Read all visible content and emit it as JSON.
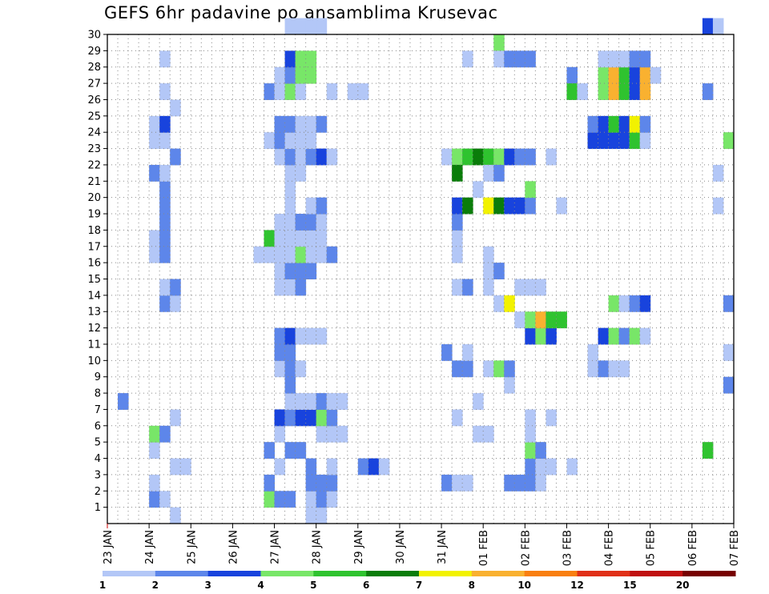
{
  "chart_data": {
    "type": "heatmap",
    "title": "GEFS 6hr padavine po ansamblima Krusevac",
    "xlabel": "",
    "ylabel": "",
    "x_ticks": [
      "23 JAN",
      "24 JAN",
      "25 JAN",
      "26 JAN",
      "27 JAN",
      "28 JAN",
      "29 JAN",
      "30 JAN",
      "31 JAN",
      "01 FEB",
      "02 FEB",
      "03 FEB",
      "04 FEB",
      "05 FEB",
      "06 FEB",
      "07 FEB"
    ],
    "y_ticks": [
      "1",
      "2",
      "3",
      "4",
      "5",
      "6",
      "7",
      "8",
      "9",
      "10",
      "11",
      "12",
      "13",
      "14",
      "15",
      "16",
      "17",
      "18",
      "19",
      "20",
      "21",
      "22",
      "23",
      "24",
      "25",
      "26",
      "27",
      "28",
      "29",
      "30"
    ],
    "xlim_steps": [
      0,
      60
    ],
    "ylim": [
      0,
      30
    ],
    "grid": true,
    "legend": {
      "placement": "bottom",
      "thresholds": [
        "1",
        "2",
        "3",
        "4",
        "5",
        "6",
        "7",
        "8",
        "10",
        "12",
        "15",
        "20"
      ],
      "colors": [
        "#b3c7f7",
        "#5d86ea",
        "#1843dd",
        "#78e668",
        "#2fc32f",
        "#0a7d0a",
        "#f2f200",
        "#f9b130",
        "#f97f10",
        "#e03018",
        "#c01010",
        "#770000"
      ]
    },
    "cells_format": "[time_step_6h_from_23JAN00, member, color_class_1_to_12]",
    "cells": [
      [
        1,
        7,
        2
      ],
      [
        4,
        1,
        2
      ],
      [
        4,
        2,
        1
      ],
      [
        4,
        4,
        1
      ],
      [
        4,
        5,
        4
      ],
      [
        4,
        16,
        1
      ],
      [
        4,
        17,
        1
      ],
      [
        4,
        21,
        2
      ],
      [
        4,
        23,
        1
      ],
      [
        4,
        24,
        1
      ],
      [
        5,
        1,
        1
      ],
      [
        5,
        5,
        2
      ],
      [
        5,
        13,
        2
      ],
      [
        5,
        14,
        1
      ],
      [
        5,
        16,
        2
      ],
      [
        5,
        17,
        2
      ],
      [
        5,
        18,
        2
      ],
      [
        5,
        19,
        2
      ],
      [
        5,
        20,
        2
      ],
      [
        5,
        21,
        1
      ],
      [
        5,
        23,
        1
      ],
      [
        5,
        24,
        3
      ],
      [
        5,
        26,
        1
      ],
      [
        5,
        28,
        1
      ],
      [
        6,
        0,
        1
      ],
      [
        6,
        3,
        1
      ],
      [
        6,
        6,
        1
      ],
      [
        6,
        13,
        1
      ],
      [
        6,
        14,
        2
      ],
      [
        6,
        22,
        2
      ],
      [
        6,
        25,
        1
      ],
      [
        7,
        3,
        1
      ],
      [
        14,
        16,
        1
      ],
      [
        15,
        1,
        4
      ],
      [
        15,
        2,
        2
      ],
      [
        15,
        4,
        2
      ],
      [
        15,
        16,
        1
      ],
      [
        15,
        17,
        5
      ],
      [
        15,
        23,
        1
      ],
      [
        15,
        26,
        2
      ],
      [
        16,
        1,
        2
      ],
      [
        16,
        3,
        1
      ],
      [
        16,
        5,
        1
      ],
      [
        16,
        6,
        3
      ],
      [
        16,
        9,
        1
      ],
      [
        16,
        10,
        2
      ],
      [
        16,
        11,
        2
      ],
      [
        16,
        14,
        1
      ],
      [
        16,
        15,
        1
      ],
      [
        16,
        16,
        1
      ],
      [
        16,
        17,
        1
      ],
      [
        16,
        18,
        1
      ],
      [
        16,
        22,
        1
      ],
      [
        16,
        23,
        2
      ],
      [
        16,
        24,
        2
      ],
      [
        16,
        26,
        1
      ],
      [
        16,
        27,
        1
      ],
      [
        17,
        1,
        2
      ],
      [
        17,
        4,
        2
      ],
      [
        17,
        6,
        2
      ],
      [
        17,
        7,
        1
      ],
      [
        17,
        8,
        2
      ],
      [
        17,
        9,
        2
      ],
      [
        17,
        10,
        2
      ],
      [
        17,
        11,
        3
      ],
      [
        17,
        14,
        1
      ],
      [
        17,
        15,
        2
      ],
      [
        17,
        16,
        1
      ],
      [
        17,
        17,
        1
      ],
      [
        17,
        18,
        1
      ],
      [
        17,
        19,
        1
      ],
      [
        17,
        20,
        1
      ],
      [
        17,
        21,
        1
      ],
      [
        17,
        22,
        2
      ],
      [
        17,
        23,
        1
      ],
      [
        17,
        24,
        2
      ],
      [
        17,
        26,
        4
      ],
      [
        17,
        27,
        2
      ],
      [
        17,
        28,
        3
      ],
      [
        17,
        30,
        1
      ],
      [
        18,
        4,
        2
      ],
      [
        18,
        6,
        3
      ],
      [
        18,
        7,
        1
      ],
      [
        18,
        9,
        1
      ],
      [
        18,
        11,
        1
      ],
      [
        18,
        14,
        2
      ],
      [
        18,
        15,
        2
      ],
      [
        18,
        16,
        4
      ],
      [
        18,
        17,
        1
      ],
      [
        18,
        18,
        2
      ],
      [
        18,
        21,
        1
      ],
      [
        18,
        22,
        1
      ],
      [
        18,
        23,
        1
      ],
      [
        18,
        24,
        1
      ],
      [
        18,
        26,
        1
      ],
      [
        18,
        27,
        4
      ],
      [
        18,
        28,
        4
      ],
      [
        18,
        30,
        1
      ],
      [
        19,
        0,
        1
      ],
      [
        19,
        1,
        1
      ],
      [
        19,
        2,
        2
      ],
      [
        19,
        3,
        2
      ],
      [
        19,
        6,
        3
      ],
      [
        19,
        7,
        1
      ],
      [
        19,
        11,
        1
      ],
      [
        19,
        15,
        2
      ],
      [
        19,
        16,
        1
      ],
      [
        19,
        17,
        1
      ],
      [
        19,
        18,
        2
      ],
      [
        19,
        19,
        1
      ],
      [
        19,
        22,
        2
      ],
      [
        19,
        23,
        1
      ],
      [
        19,
        24,
        1
      ],
      [
        19,
        27,
        4
      ],
      [
        19,
        28,
        4
      ],
      [
        19,
        30,
        1
      ],
      [
        20,
        0,
        1
      ],
      [
        20,
        1,
        2
      ],
      [
        20,
        2,
        2
      ],
      [
        20,
        5,
        1
      ],
      [
        20,
        6,
        4
      ],
      [
        20,
        7,
        2
      ],
      [
        20,
        11,
        1
      ],
      [
        20,
        16,
        1
      ],
      [
        20,
        17,
        1
      ],
      [
        20,
        18,
        1
      ],
      [
        20,
        19,
        2
      ],
      [
        20,
        22,
        3
      ],
      [
        20,
        24,
        2
      ],
      [
        20,
        30,
        1
      ],
      [
        21,
        1,
        1
      ],
      [
        21,
        2,
        2
      ],
      [
        21,
        3,
        1
      ],
      [
        21,
        5,
        1
      ],
      [
        21,
        6,
        2
      ],
      [
        21,
        7,
        1
      ],
      [
        21,
        16,
        2
      ],
      [
        21,
        22,
        1
      ],
      [
        21,
        26,
        1
      ],
      [
        22,
        5,
        1
      ],
      [
        22,
        7,
        1
      ],
      [
        23,
        26,
        1
      ],
      [
        24,
        3,
        2
      ],
      [
        24,
        26,
        1
      ],
      [
        25,
        3,
        3
      ],
      [
        26,
        3,
        1
      ],
      [
        32,
        2,
        2
      ],
      [
        32,
        10,
        2
      ],
      [
        32,
        22,
        1
      ],
      [
        33,
        2,
        1
      ],
      [
        33,
        6,
        1
      ],
      [
        33,
        9,
        2
      ],
      [
        33,
        14,
        1
      ],
      [
        33,
        16,
        1
      ],
      [
        33,
        17,
        1
      ],
      [
        33,
        18,
        2
      ],
      [
        33,
        19,
        3
      ],
      [
        33,
        22,
        4
      ],
      [
        33,
        21,
        6
      ],
      [
        34,
        2,
        1
      ],
      [
        34,
        9,
        2
      ],
      [
        34,
        10,
        1
      ],
      [
        34,
        14,
        2
      ],
      [
        34,
        19,
        6
      ],
      [
        34,
        22,
        5
      ],
      [
        34,
        28,
        1
      ],
      [
        35,
        5,
        1
      ],
      [
        35,
        7,
        1
      ],
      [
        35,
        22,
        6
      ],
      [
        35,
        20,
        1
      ],
      [
        36,
        5,
        1
      ],
      [
        36,
        9,
        1
      ],
      [
        36,
        14,
        1
      ],
      [
        36,
        15,
        1
      ],
      [
        36,
        16,
        1
      ],
      [
        36,
        19,
        7
      ],
      [
        36,
        22,
        5
      ],
      [
        36,
        21,
        1
      ],
      [
        37,
        9,
        4
      ],
      [
        37,
        13,
        1
      ],
      [
        37,
        15,
        2
      ],
      [
        37,
        19,
        6
      ],
      [
        37,
        22,
        4
      ],
      [
        37,
        21,
        2
      ],
      [
        37,
        29,
        4
      ],
      [
        37,
        28,
        1
      ],
      [
        38,
        2,
        2
      ],
      [
        38,
        8,
        1
      ],
      [
        38,
        9,
        2
      ],
      [
        38,
        13,
        7
      ],
      [
        38,
        19,
        3
      ],
      [
        38,
        22,
        3
      ],
      [
        38,
        28,
        2
      ],
      [
        39,
        2,
        2
      ],
      [
        39,
        12,
        1
      ],
      [
        39,
        14,
        1
      ],
      [
        39,
        19,
        3
      ],
      [
        39,
        22,
        2
      ],
      [
        39,
        28,
        2
      ],
      [
        40,
        2,
        2
      ],
      [
        40,
        3,
        2
      ],
      [
        40,
        4,
        4
      ],
      [
        40,
        5,
        1
      ],
      [
        40,
        6,
        1
      ],
      [
        40,
        11,
        3
      ],
      [
        40,
        12,
        4
      ],
      [
        40,
        14,
        1
      ],
      [
        40,
        19,
        2
      ],
      [
        40,
        20,
        4
      ],
      [
        40,
        22,
        2
      ],
      [
        40,
        28,
        2
      ],
      [
        41,
        2,
        1
      ],
      [
        41,
        3,
        1
      ],
      [
        41,
        4,
        2
      ],
      [
        41,
        11,
        4
      ],
      [
        41,
        12,
        8
      ],
      [
        41,
        14,
        1
      ],
      [
        42,
        3,
        1
      ],
      [
        42,
        6,
        1
      ],
      [
        42,
        11,
        3
      ],
      [
        42,
        12,
        5
      ],
      [
        42,
        22,
        1
      ],
      [
        43,
        12,
        5
      ],
      [
        43,
        19,
        1
      ],
      [
        44,
        3,
        1
      ],
      [
        44,
        27,
        2
      ],
      [
        44,
        26,
        5
      ],
      [
        45,
        26,
        1
      ],
      [
        46,
        10,
        1
      ],
      [
        46,
        9,
        1
      ],
      [
        46,
        23,
        3
      ],
      [
        46,
        24,
        2
      ],
      [
        47,
        9,
        2
      ],
      [
        47,
        11,
        3
      ],
      [
        47,
        23,
        3
      ],
      [
        47,
        24,
        3
      ],
      [
        47,
        26,
        4
      ],
      [
        47,
        27,
        4
      ],
      [
        47,
        28,
        1
      ],
      [
        48,
        9,
        1
      ],
      [
        48,
        11,
        4
      ],
      [
        48,
        23,
        3
      ],
      [
        48,
        24,
        5
      ],
      [
        48,
        26,
        8
      ],
      [
        48,
        27,
        8
      ],
      [
        48,
        28,
        1
      ],
      [
        48,
        13,
        4
      ],
      [
        49,
        9,
        1
      ],
      [
        49,
        11,
        2
      ],
      [
        49,
        13,
        1
      ],
      [
        49,
        23,
        3
      ],
      [
        49,
        24,
        3
      ],
      [
        49,
        26,
        5
      ],
      [
        49,
        27,
        5
      ],
      [
        49,
        28,
        1
      ],
      [
        50,
        11,
        4
      ],
      [
        50,
        13,
        2
      ],
      [
        50,
        23,
        5
      ],
      [
        50,
        24,
        7
      ],
      [
        50,
        26,
        3
      ],
      [
        50,
        27,
        3
      ],
      [
        50,
        28,
        2
      ],
      [
        51,
        11,
        1
      ],
      [
        51,
        13,
        3
      ],
      [
        51,
        23,
        1
      ],
      [
        51,
        24,
        2
      ],
      [
        51,
        26,
        8
      ],
      [
        51,
        27,
        8
      ],
      [
        51,
        28,
        2
      ],
      [
        52,
        27,
        1
      ],
      [
        57,
        4,
        5
      ],
      [
        57,
        26,
        2
      ],
      [
        57,
        30,
        3
      ],
      [
        58,
        19,
        1
      ],
      [
        58,
        21,
        1
      ],
      [
        58,
        30,
        1
      ],
      [
        59,
        8,
        2
      ],
      [
        59,
        10,
        1
      ],
      [
        59,
        13,
        2
      ],
      [
        59,
        23,
        4
      ]
    ]
  }
}
